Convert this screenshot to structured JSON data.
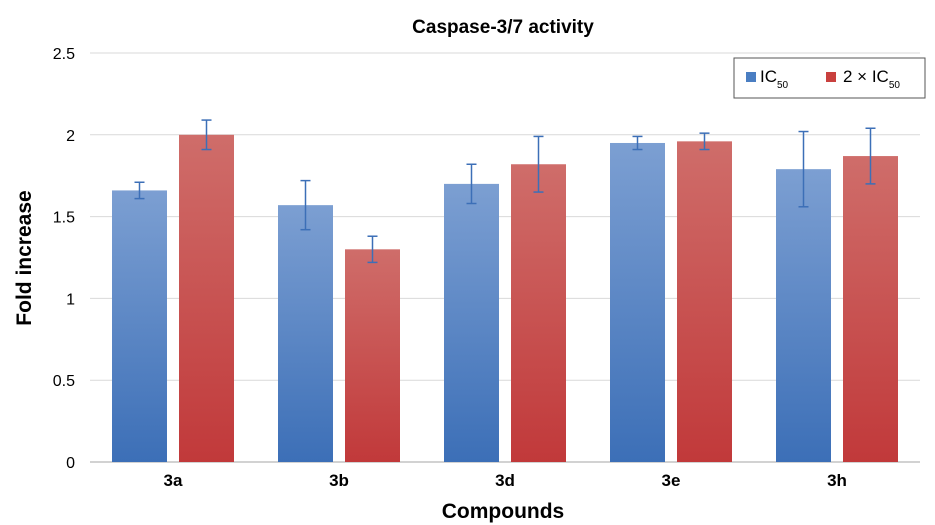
{
  "chart_data": {
    "type": "bar",
    "title": "Caspase-3/7 activity",
    "xlabel": "Compounds",
    "ylabel": "Fold increase",
    "categories": [
      "3a",
      "3b",
      "3d",
      "3e",
      "3h"
    ],
    "ylim": [
      0,
      2.5
    ],
    "yticks": [
      "0",
      "0.5",
      "1",
      "1.5",
      "2",
      "2.5"
    ],
    "grid": true,
    "legend_position": "top-right",
    "series": [
      {
        "name": "IC",
        "subscript": "50",
        "color": "#4a7ec2",
        "values": [
          1.66,
          1.57,
          1.7,
          1.95,
          1.79
        ],
        "errors": [
          0.05,
          0.15,
          0.12,
          0.04,
          0.23
        ]
      },
      {
        "name": "2 × IC",
        "subscript": "50",
        "color": "#c9403e",
        "values": [
          2.0,
          1.3,
          1.82,
          1.96,
          1.87
        ],
        "errors": [
          0.09,
          0.08,
          0.17,
          0.05,
          0.17
        ]
      }
    ]
  }
}
